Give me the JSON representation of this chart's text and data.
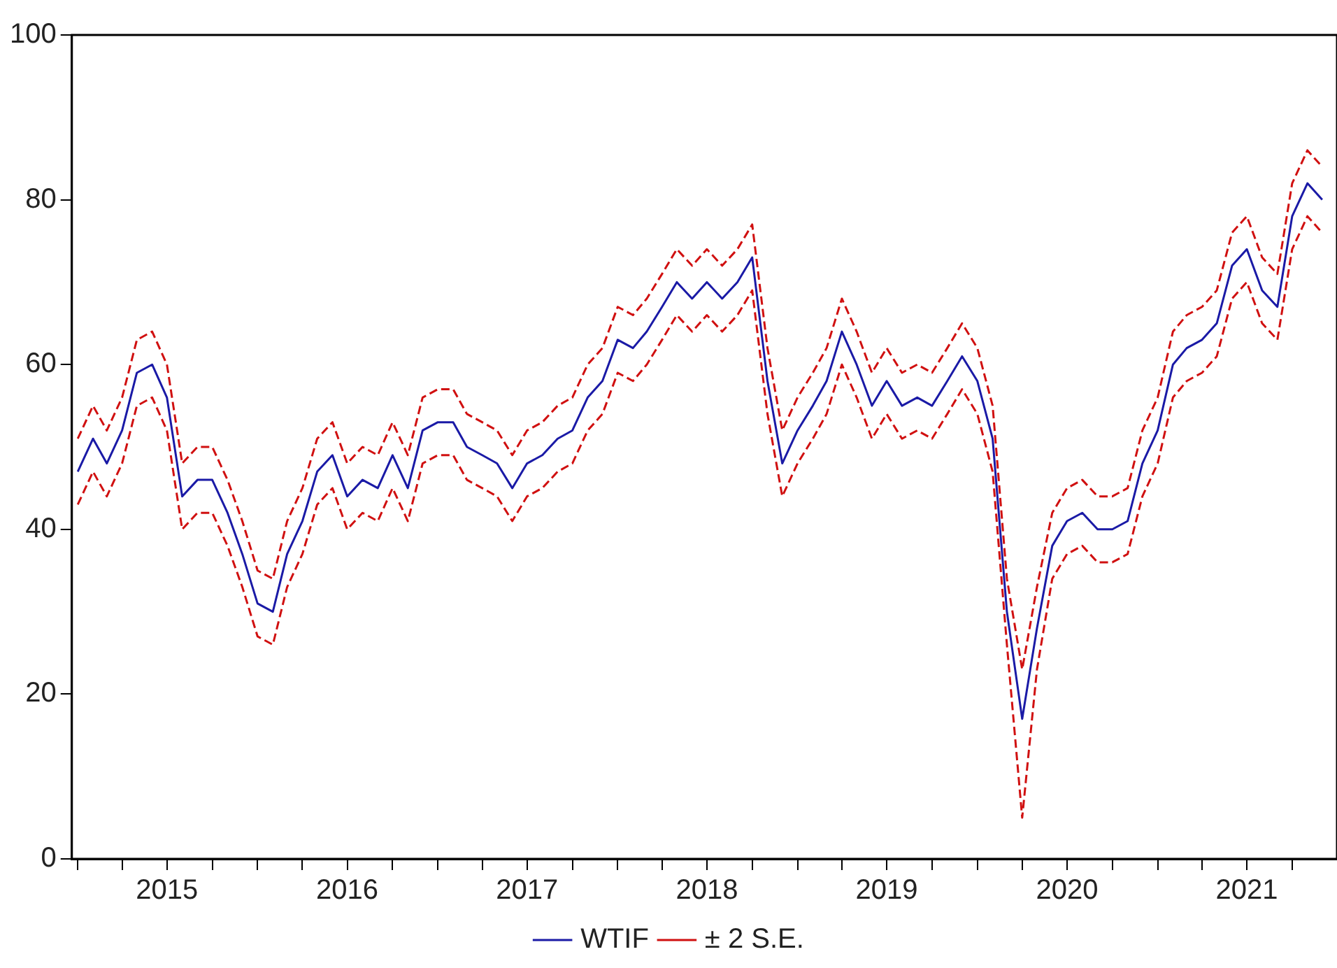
{
  "chart_data": {
    "type": "line",
    "x": [
      "2015-01",
      "2015-02",
      "2015-03",
      "2015-04",
      "2015-05",
      "2015-06",
      "2015-07",
      "2015-08",
      "2015-09",
      "2015-10",
      "2015-11",
      "2015-12",
      "2016-01",
      "2016-02",
      "2016-03",
      "2016-04",
      "2016-05",
      "2016-06",
      "2016-07",
      "2016-08",
      "2016-09",
      "2016-10",
      "2016-11",
      "2016-12",
      "2017-01",
      "2017-02",
      "2017-03",
      "2017-04",
      "2017-05",
      "2017-06",
      "2017-07",
      "2017-08",
      "2017-09",
      "2017-10",
      "2017-11",
      "2017-12",
      "2018-01",
      "2018-02",
      "2018-03",
      "2018-04",
      "2018-05",
      "2018-06",
      "2018-07",
      "2018-08",
      "2018-09",
      "2018-10",
      "2018-11",
      "2018-12",
      "2019-01",
      "2019-02",
      "2019-03",
      "2019-04",
      "2019-05",
      "2019-06",
      "2019-07",
      "2019-08",
      "2019-09",
      "2019-10",
      "2019-11",
      "2019-12",
      "2020-01",
      "2020-02",
      "2020-03",
      "2020-04",
      "2020-05",
      "2020-06",
      "2020-07",
      "2020-08",
      "2020-09",
      "2020-10",
      "2020-11",
      "2020-12",
      "2021-01",
      "2021-02",
      "2021-03",
      "2021-04",
      "2021-05",
      "2021-06",
      "2021-07",
      "2021-08",
      "2021-09",
      "2021-10",
      "2021-11",
      "2021-12"
    ],
    "series": [
      {
        "name": "WTIF",
        "color": "#1a1aa6",
        "line_style": "solid",
        "values": [
          47,
          51,
          48,
          52,
          59,
          60,
          56,
          44,
          46,
          46,
          42,
          37,
          31,
          30,
          37,
          41,
          47,
          49,
          44,
          46,
          45,
          49,
          45,
          52,
          53,
          53,
          50,
          49,
          48,
          45,
          48,
          49,
          51,
          52,
          56,
          58,
          63,
          62,
          64,
          67,
          70,
          68,
          70,
          68,
          70,
          73,
          58,
          48,
          52,
          55,
          58,
          64,
          60,
          55,
          58,
          55,
          56,
          55,
          58,
          61,
          58,
          51,
          30,
          17,
          28,
          38,
          41,
          42,
          40,
          40,
          41,
          48,
          52,
          60,
          62,
          63,
          65,
          72,
          74,
          69,
          67,
          78,
          82,
          80
        ]
      },
      {
        "name": "± 2 S.E.",
        "color": "#d01010",
        "line_style": "dashed",
        "values": [
          51,
          55,
          52,
          56,
          63,
          64,
          60,
          48,
          50,
          50,
          46,
          41,
          35,
          34,
          41,
          45,
          51,
          53,
          48,
          50,
          49,
          53,
          49,
          56,
          57,
          57,
          54,
          53,
          52,
          49,
          52,
          53,
          55,
          56,
          60,
          62,
          67,
          66,
          68,
          71,
          74,
          72,
          74,
          72,
          74,
          77,
          62,
          52,
          56,
          59,
          62,
          68,
          64,
          59,
          62,
          59,
          60,
          59,
          62,
          65,
          62,
          55,
          34,
          23,
          33,
          42,
          45,
          46,
          44,
          44,
          45,
          52,
          56,
          64,
          66,
          67,
          69,
          76,
          78,
          73,
          71,
          82,
          86,
          84
        ]
      },
      {
        "color": "#d01010",
        "line_style": "dashed",
        "values": [
          43,
          47,
          44,
          48,
          55,
          56,
          52,
          40,
          42,
          42,
          38,
          33,
          27,
          26,
          33,
          37,
          43,
          45,
          40,
          42,
          41,
          45,
          41,
          48,
          49,
          49,
          46,
          45,
          44,
          41,
          44,
          45,
          47,
          48,
          52,
          54,
          59,
          58,
          60,
          63,
          66,
          64,
          66,
          64,
          66,
          69,
          54,
          44,
          48,
          51,
          54,
          60,
          56,
          51,
          54,
          51,
          52,
          51,
          54,
          57,
          54,
          47,
          26,
          5,
          23,
          34,
          37,
          38,
          36,
          36,
          37,
          44,
          48,
          56,
          58,
          59,
          61,
          68,
          70,
          65,
          63,
          74,
          78,
          76
        ]
      }
    ],
    "xlim": [
      "2014-12-20",
      "2021-12-31"
    ],
    "xticks": [
      {
        "value": "2015-01-01",
        "label": null
      },
      {
        "value": "2015-04-01",
        "label": null
      },
      {
        "value": "2015-07-01",
        "label": "2015"
      },
      {
        "value": "2015-10-01",
        "label": null
      },
      {
        "value": "2016-01-01",
        "label": null
      },
      {
        "value": "2016-04-01",
        "label": null
      },
      {
        "value": "2016-07-01",
        "label": "2016"
      },
      {
        "value": "2016-10-01",
        "label": null
      },
      {
        "value": "2017-01-01",
        "label": null
      },
      {
        "value": "2017-04-01",
        "label": null
      },
      {
        "value": "2017-07-01",
        "label": "2017"
      },
      {
        "value": "2017-10-01",
        "label": null
      },
      {
        "value": "2018-01-01",
        "label": null
      },
      {
        "value": "2018-04-01",
        "label": null
      },
      {
        "value": "2018-07-01",
        "label": "2018"
      },
      {
        "value": "2018-10-01",
        "label": null
      },
      {
        "value": "2019-01-01",
        "label": null
      },
      {
        "value": "2019-04-01",
        "label": null
      },
      {
        "value": "2019-07-01",
        "label": "2019"
      },
      {
        "value": "2019-10-01",
        "label": null
      },
      {
        "value": "2020-01-01",
        "label": null
      },
      {
        "value": "2020-04-01",
        "label": null
      },
      {
        "value": "2020-07-01",
        "label": "2020"
      },
      {
        "value": "2020-10-01",
        "label": null
      },
      {
        "value": "2021-01-01",
        "label": null
      },
      {
        "value": "2021-04-01",
        "label": null
      },
      {
        "value": "2021-07-01",
        "label": "2021"
      },
      {
        "value": "2021-10-01",
        "label": null
      }
    ],
    "ylim": [
      0,
      100
    ],
    "yticks": [
      0,
      20,
      40,
      60,
      80,
      100
    ],
    "grid": false,
    "legend": "bottom",
    "marker": "none"
  }
}
